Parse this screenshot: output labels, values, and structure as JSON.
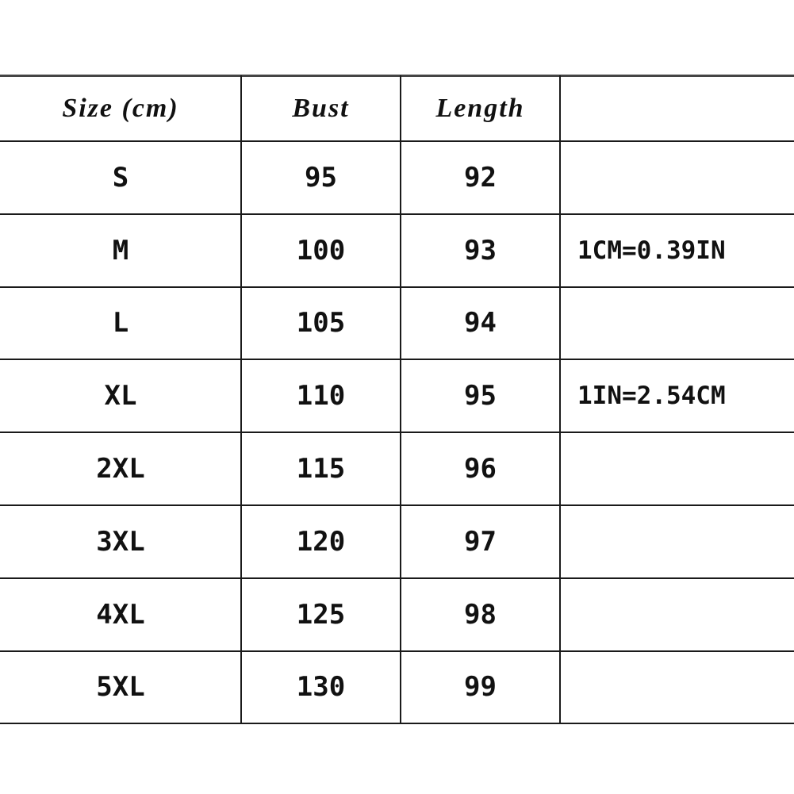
{
  "table": {
    "header": [
      "Size (cm)",
      "Bust",
      "Length"
    ],
    "rows": [
      [
        "S",
        95,
        92
      ],
      [
        "M",
        100,
        93,
        "1CM=0.39IN"
      ],
      [
        "L",
        105,
        94
      ],
      [
        "XL",
        110,
        95,
        "1IN=2.54CM"
      ],
      [
        "2XL",
        115,
        96
      ],
      [
        "3XL",
        120,
        97
      ],
      [
        "4XL",
        125,
        98
      ],
      [
        "5XL",
        130,
        99
      ]
    ]
  }
}
